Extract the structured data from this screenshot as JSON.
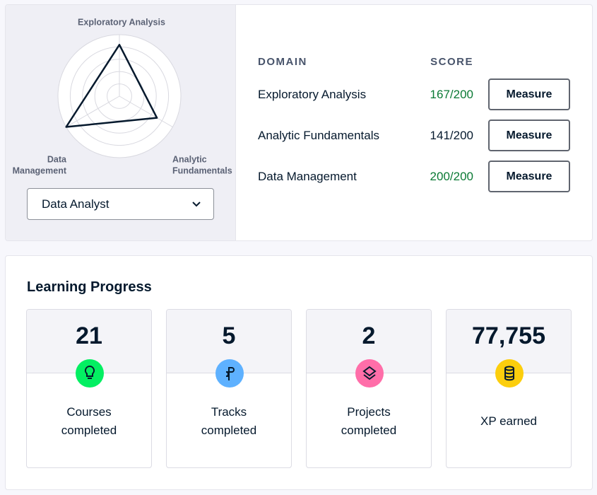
{
  "radar": {
    "type": "radar",
    "categories": [
      [
        "Exploratory Analysis"
      ],
      [
        "Analytic",
        "Fundamentals"
      ],
      [
        "Data",
        "Management"
      ]
    ],
    "values": [
      167,
      141,
      200
    ],
    "rlim": [
      0,
      200
    ],
    "color": "#05192d"
  },
  "role_select": {
    "selected": "Data Analyst"
  },
  "table": {
    "headers": [
      "DOMAIN",
      "SCORE"
    ],
    "rows": [
      {
        "domain": "Exploratory Analysis",
        "score": "167/200",
        "color": "#0b7a35",
        "action": "Measure"
      },
      {
        "domain": "Analytic Fundamentals",
        "score": "141/200",
        "color": "#05192d",
        "action": "Measure"
      },
      {
        "domain": "Data Management",
        "score": "200/200",
        "color": "#0b7a35",
        "action": "Measure"
      }
    ]
  },
  "progress": {
    "title": "Learning Progress",
    "stats": [
      {
        "value": "21",
        "label": [
          "Courses",
          "completed"
        ],
        "color": "#03ef62"
      },
      {
        "value": "5",
        "label": [
          "Tracks",
          "completed"
        ],
        "color": "#5eb1ff"
      },
      {
        "value": "2",
        "label": [
          "Projects",
          "completed"
        ],
        "color": "#ff6ea9"
      },
      {
        "value": "77,755",
        "label": [
          "XP earned"
        ],
        "color": "#fcce0d"
      }
    ]
  }
}
